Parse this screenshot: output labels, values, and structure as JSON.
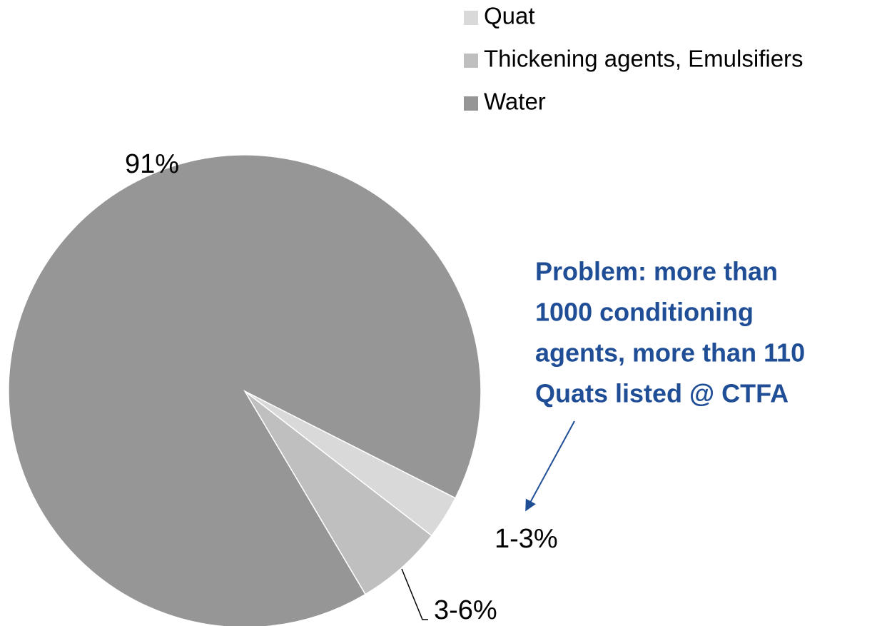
{
  "chart_data": {
    "type": "pie",
    "categories": [
      "Quat",
      "Thickening agents, Emulsifiers",
      "Water"
    ],
    "values": [
      3,
      6,
      91
    ],
    "value_labels": [
      "1-3%",
      "3-6%",
      "91%"
    ],
    "colors": [
      "#d9d9d9",
      "#bfbfbf",
      "#969696"
    ],
    "annotation": [
      "Problem: more than",
      "1000 conditioning",
      "agents, more than 110",
      "Quats listed @ CTFA"
    ]
  }
}
